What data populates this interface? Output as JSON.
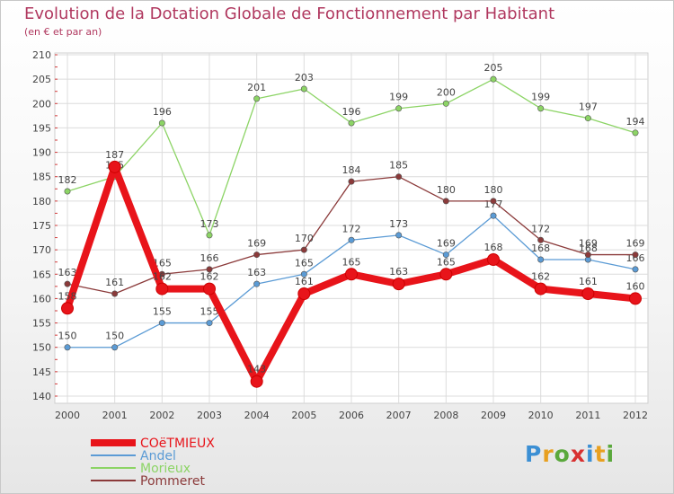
{
  "title": "Evolution de la Dotation Globale de Fonctionnement par Habitant",
  "subtitle": "(en € et par an)",
  "brand": {
    "letters": [
      "P",
      "r",
      "o",
      "x",
      "i",
      "t",
      "i"
    ],
    "colors": [
      "#3b8fd4",
      "#e8a020",
      "#5aa83c",
      "#d83030",
      "#3b8fd4",
      "#e8a020",
      "#5aa83c"
    ]
  },
  "chart_data": {
    "type": "line",
    "title": "Evolution de la Dotation Globale de Fonctionnement par Habitant",
    "subtitle": "(en € et par an)",
    "xlabel": "",
    "ylabel": "",
    "x": [
      "2000",
      "2001",
      "2002",
      "2003",
      "2004",
      "2005",
      "2006",
      "2007",
      "2008",
      "2009",
      "2010",
      "2011",
      "2012"
    ],
    "ylim": [
      140,
      210
    ],
    "yticks": [
      140,
      145,
      150,
      155,
      160,
      165,
      170,
      175,
      180,
      185,
      190,
      195,
      200,
      205,
      210
    ],
    "grid": true,
    "legend_position": "bottom-left",
    "series": [
      {
        "name": "COëTMIEUX",
        "color": "#e8141a",
        "values": [
          158,
          187,
          162,
          162,
          143,
          161,
          165,
          163,
          165,
          168,
          162,
          161,
          160
        ]
      },
      {
        "name": "Andel",
        "color": "#5b9bd5",
        "values": [
          150,
          150,
          155,
          155,
          163,
          165,
          172,
          173,
          169,
          177,
          168,
          168,
          166
        ]
      },
      {
        "name": "Morieux",
        "color": "#8cd465",
        "values": [
          182,
          185,
          196,
          173,
          201,
          203,
          196,
          199,
          200,
          205,
          199,
          197,
          194
        ]
      },
      {
        "name": "Pommeret",
        "color": "#8b3a3a",
        "values": [
          163,
          161,
          165,
          166,
          169,
          170,
          184,
          185,
          180,
          180,
          172,
          169,
          169
        ]
      }
    ]
  }
}
